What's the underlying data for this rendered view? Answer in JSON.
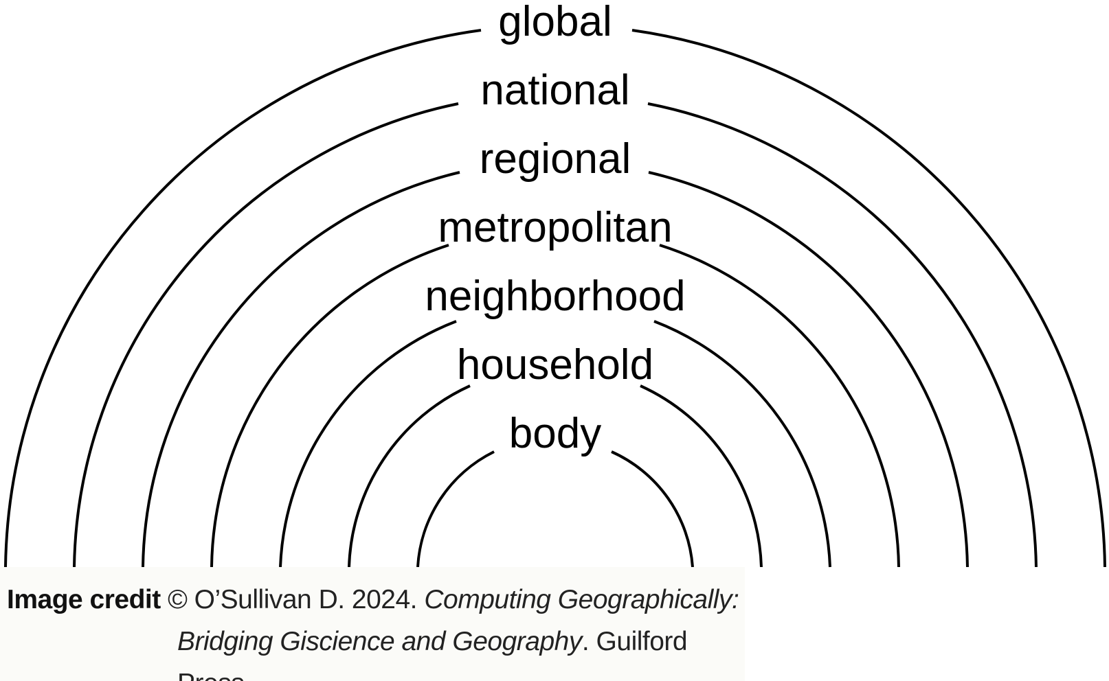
{
  "diagram": {
    "levels": [
      "body",
      "household",
      "neighborhood",
      "metropolitan",
      "regional",
      "national",
      "global"
    ]
  },
  "credit": {
    "label": "Image credit",
    "text1": " © O’Sullivan D. 2024. ",
    "title1": "Computing Geographically:",
    "title2": "Bridging Giscience and Geography",
    "text2": ". Guilford Press."
  }
}
